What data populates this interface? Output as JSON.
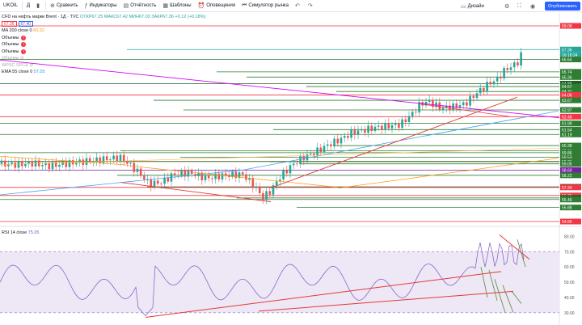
{
  "toolbar": {
    "symbol": "UKOIL",
    "interval": "Д",
    "compare_label": "Сравнить",
    "indicators_label": "Индикаторы",
    "reports_label": "Отчётность",
    "templates_label": "Шаблоны",
    "alerts_label": "Оповещения",
    "replay_label": "Симулятор рынка",
    "layout_name": "Дизайн",
    "publish_label": "Опубликовать"
  },
  "legend": {
    "title": "CFD на нефть марки Brent · 1Д · TVC",
    "ohlc": "ОТКР67.25 МАКС67.42 МИН67.03 ЗАКР67.36 +0.12 (+0.18%)",
    "bid": "67.36",
    "ask": "67.40",
    "ma200": "MA 200 close 0",
    "ma200_value": "60.32",
    "volumes": [
      "Объемы",
      "Объемы",
      "Объемы"
    ],
    "hidden1": "Объемы",
    "hidden2": "WPSC SPCE",
    "ema55": "EMA 55 close 0",
    "ema55_value": "57.05",
    "rsi": "RSI 14 close",
    "rsi_value": "75.05"
  },
  "price_scale": [
    {
      "label": "69.08",
      "y": 69.08,
      "color": "#f23645"
    },
    {
      "label": "67.36",
      "y": 67.36,
      "color": "#26a69a"
    },
    {
      "label": "16:18:24",
      "y": 66.95,
      "color": "#26a69a"
    },
    {
      "label": "66.64",
      "y": 66.64,
      "color": "#2e7d32"
    },
    {
      "label": "65.74",
      "y": 65.74,
      "color": "#2e7d32"
    },
    {
      "label": "65.36",
      "y": 65.36,
      "color": "#2e7d32"
    },
    {
      "label": "64.88",
      "y": 64.88,
      "color": "#1b5e20"
    },
    {
      "label": "64.67",
      "y": 64.67,
      "color": "#2e7d32"
    },
    {
      "label": "64.31",
      "y": 64.31,
      "color": "#2e7d32"
    },
    {
      "label": "64.06",
      "y": 64.06,
      "color": "#f23645"
    },
    {
      "label": "63.67",
      "y": 63.67,
      "color": "#2e7d32"
    },
    {
      "label": "62.97",
      "y": 62.97,
      "color": "#2e7d32"
    },
    {
      "label": "61.99",
      "y": 61.99,
      "color": "#2e7d32"
    },
    {
      "label": "62.48",
      "y": 62.48,
      "color": "#f23645"
    },
    {
      "label": "61.54",
      "y": 61.54,
      "color": "#2e7d32"
    },
    {
      "label": "61.19",
      "y": 61.19,
      "color": "#2e7d32"
    },
    {
      "label": "60.38",
      "y": 60.38,
      "color": "#2e7d32"
    },
    {
      "label": "60.01",
      "y": 60.01,
      "color": "#2e7d32"
    },
    {
      "label": "59.86",
      "y": 59.86,
      "color": "#2e7d32"
    },
    {
      "label": "59.53",
      "y": 59.53,
      "color": "#2e7d32"
    },
    {
      "label": "59.23",
      "y": 59.23,
      "color": "#f23645"
    },
    {
      "label": "59.22",
      "y": 59.22,
      "color": "#2e7d32"
    },
    {
      "label": "59.21",
      "y": 59.21,
      "color": "#2e7d32"
    },
    {
      "label": "59.05",
      "y": 59.05,
      "color": "#2e7d32"
    },
    {
      "label": "58.60",
      "y": 58.6,
      "color": "#7b1fa2"
    },
    {
      "label": "58.22",
      "y": 58.22,
      "color": "#2e7d32"
    },
    {
      "label": "57.38",
      "y": 57.38,
      "color": "#1b5e20"
    },
    {
      "label": "57.34",
      "y": 57.34,
      "color": "#f23645"
    },
    {
      "label": "56.75",
      "y": 56.75,
      "color": "#f23645"
    },
    {
      "label": "56.57",
      "y": 56.57,
      "color": "#1b5e20"
    },
    {
      "label": "56.46",
      "y": 56.46,
      "color": "#2e7d32"
    },
    {
      "label": "55.88",
      "y": 55.88,
      "color": "#2e7d32"
    },
    {
      "label": "54.86",
      "y": 54.86,
      "color": "#f23645"
    }
  ],
  "rsi_scale": [
    "80.00",
    "70.00",
    "60.00",
    "50.00",
    "40.00",
    "30.00"
  ]
}
